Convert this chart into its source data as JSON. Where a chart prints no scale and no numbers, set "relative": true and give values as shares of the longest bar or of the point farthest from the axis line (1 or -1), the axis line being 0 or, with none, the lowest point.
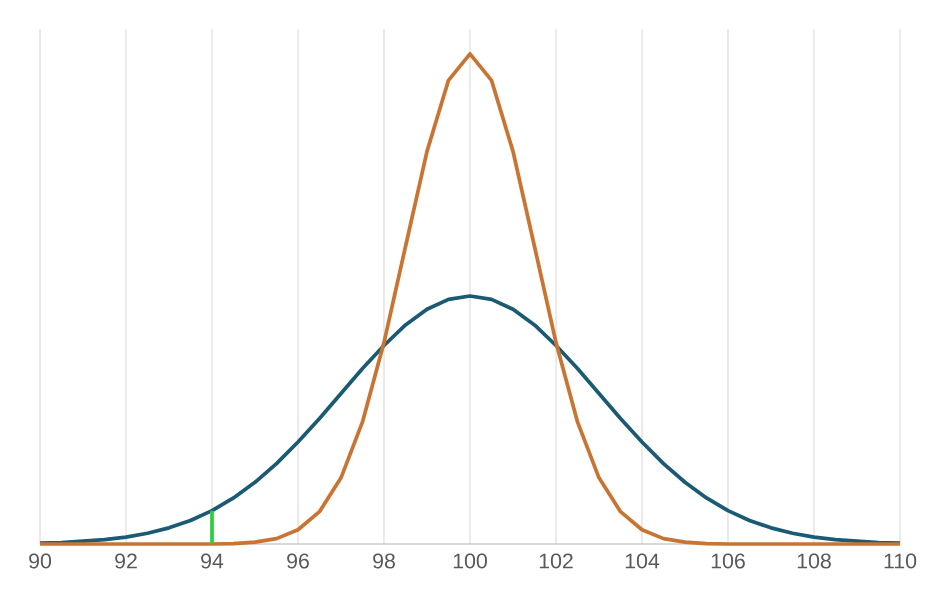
{
  "chart_data": {
    "type": "line",
    "relative": true,
    "xlim": [
      90,
      110
    ],
    "xticks": [
      90,
      92,
      94,
      96,
      98,
      100,
      102,
      104,
      106,
      108,
      110
    ],
    "grid": true,
    "tick_labels": "x",
    "marker": "none",
    "line_style": "solid",
    "series": [
      {
        "color": "#1a5a72",
        "x": [
          90,
          90.5,
          91,
          91.5,
          92,
          92.5,
          93,
          93.5,
          94,
          94.5,
          95,
          95.5,
          96,
          96.5,
          97,
          97.5,
          98,
          98.5,
          99,
          99.5,
          100,
          100.5,
          101,
          101.5,
          102,
          102.5,
          103,
          103.5,
          104,
          104.5,
          105,
          105.5,
          106,
          106.5,
          107,
          107.5,
          108,
          108.5,
          109,
          109.5,
          110
        ],
        "values": [
          0.002,
          0.003,
          0.006,
          0.009,
          0.014,
          0.022,
          0.033,
          0.048,
          0.068,
          0.094,
          0.126,
          0.164,
          0.208,
          0.256,
          0.307,
          0.358,
          0.405,
          0.447,
          0.479,
          0.499,
          0.506,
          0.499,
          0.479,
          0.447,
          0.405,
          0.358,
          0.307,
          0.256,
          0.208,
          0.164,
          0.126,
          0.094,
          0.068,
          0.048,
          0.033,
          0.022,
          0.014,
          0.009,
          0.006,
          0.003,
          0.002
        ]
      },
      {
        "color": "#c87533",
        "x": [
          90,
          94,
          94.5,
          95,
          95.5,
          96,
          96.5,
          97,
          97.5,
          98,
          98.5,
          99,
          99.5,
          100,
          100.5,
          101,
          101.5,
          102,
          102.5,
          103,
          103.5,
          104,
          104.5,
          105,
          105.5,
          106,
          110
        ],
        "values": [
          0,
          0,
          0.001,
          0.004,
          0.011,
          0.029,
          0.066,
          0.135,
          0.249,
          0.411,
          0.607,
          0.801,
          0.946,
          1,
          0.946,
          0.801,
          0.607,
          0.411,
          0.249,
          0.135,
          0.066,
          0.029,
          0.011,
          0.004,
          0.001,
          0,
          0
        ]
      },
      {
        "color": "#2ecc40",
        "x": [
          94,
          94
        ],
        "values": [
          0,
          0.068
        ]
      }
    ]
  }
}
